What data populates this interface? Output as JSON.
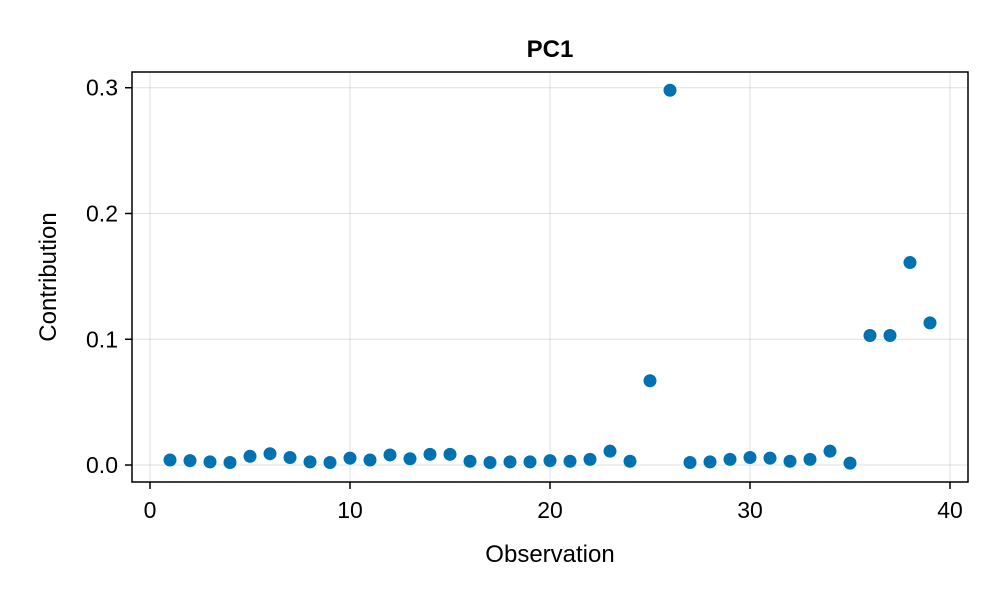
{
  "chart_data": {
    "type": "scatter",
    "title": "PC1",
    "xlabel": "Observation",
    "ylabel": "Contribution",
    "xlim": [
      -0.9,
      40.9
    ],
    "ylim": [
      -0.0135,
      0.3125
    ],
    "xticks": [
      0,
      10,
      20,
      30,
      40
    ],
    "xtick_labels": [
      "0",
      "10",
      "20",
      "30",
      "40"
    ],
    "yticks": [
      0.0,
      0.1,
      0.2,
      0.3
    ],
    "ytick_labels": [
      "0.0",
      "0.1",
      "0.2",
      "0.3"
    ],
    "grid": true,
    "marker_color": "#0072b2",
    "series": [
      {
        "x": [
          1,
          2,
          3,
          4,
          5,
          6,
          7,
          8,
          9,
          10,
          11,
          12,
          13,
          14,
          15,
          16,
          17,
          18,
          19,
          20,
          21,
          22,
          23,
          24,
          25,
          26,
          27,
          28,
          29,
          30,
          31,
          32,
          33,
          34,
          35,
          36,
          37,
          38,
          39
        ],
        "y": [
          0.004,
          0.0035,
          0.0025,
          0.002,
          0.007,
          0.009,
          0.006,
          0.0025,
          0.002,
          0.0055,
          0.004,
          0.008,
          0.005,
          0.0085,
          0.0085,
          0.003,
          0.002,
          0.0025,
          0.0025,
          0.0035,
          0.003,
          0.0045,
          0.011,
          0.003,
          0.067,
          0.298,
          0.002,
          0.0025,
          0.0045,
          0.006,
          0.0055,
          0.003,
          0.0045,
          0.011,
          0.0015,
          0.103,
          0.103,
          0.161,
          0.113
        ]
      }
    ]
  }
}
